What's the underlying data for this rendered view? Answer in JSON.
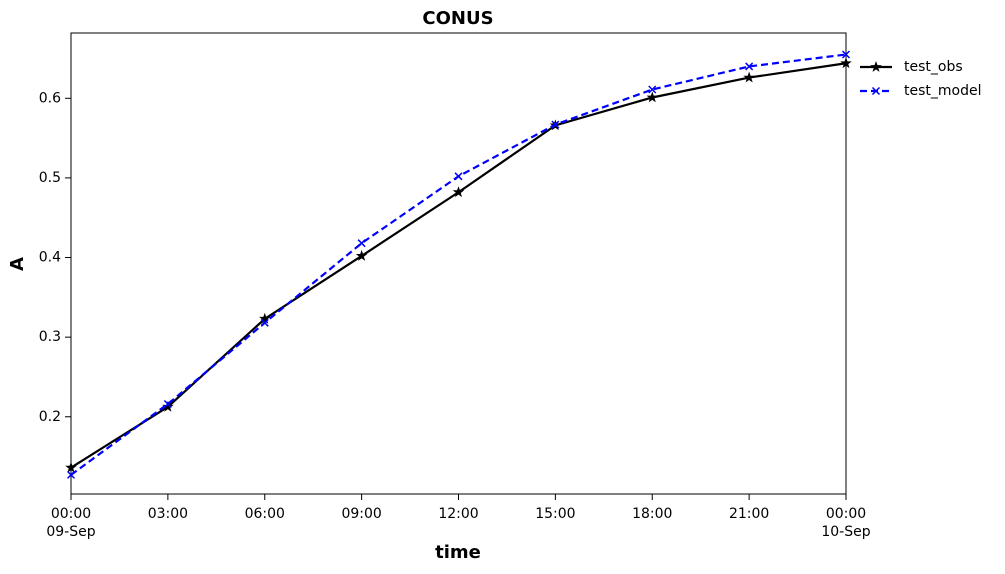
{
  "chart_data": {
    "type": "line",
    "title": "CONUS",
    "x_label": "time",
    "y_label": "A",
    "categories": [
      [
        "00:00",
        "09-Sep"
      ],
      [
        "03:00"
      ],
      [
        "06:00"
      ],
      [
        "09:00"
      ],
      [
        "12:00"
      ],
      [
        "15:00"
      ],
      [
        "18:00"
      ],
      [
        "21:00"
      ],
      [
        "00:00",
        "10-Sep"
      ]
    ],
    "series": [
      {
        "name": "test_obs",
        "color": "#000000",
        "marker": "star",
        "dash": "solid",
        "values": [
          0.136,
          0.2125,
          0.323,
          0.402,
          0.482,
          0.566,
          0.601,
          0.626,
          0.644
        ]
      },
      {
        "name": "test_model",
        "color": "#0000ff",
        "marker": "x",
        "dash": "dashed",
        "values": [
          0.127,
          0.216,
          0.318,
          0.418,
          0.502,
          0.567,
          0.611,
          0.64,
          0.655
        ]
      }
    ],
    "ylim": [
      0.103,
      0.682
    ],
    "yticks": [
      0.2,
      0.3,
      0.4,
      0.5,
      0.6
    ],
    "legend": "outside-upper-right",
    "grid": false
  }
}
